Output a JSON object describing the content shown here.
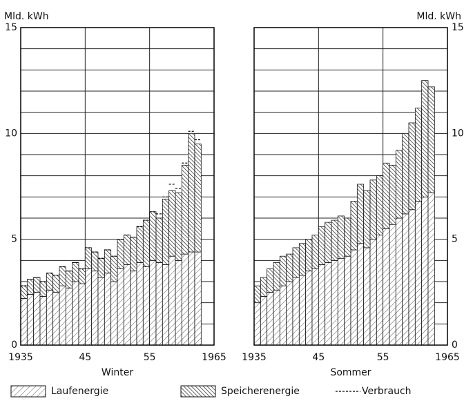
{
  "chart_data": [
    {
      "type": "step-area",
      "xlabel": "Winter",
      "ylabel": "Mld. kWh",
      "yaxis_side": "left",
      "xlim": [
        1935,
        1965
      ],
      "xticks": [
        1935,
        {
          "value": 1945,
          "label": "45"
        },
        {
          "value": 1955,
          "label": "55"
        },
        1965
      ],
      "ylim": [
        0,
        15
      ],
      "yticks": [
        0,
        5,
        10,
        15
      ],
      "minor_yticks": [
        1,
        2,
        3,
        4,
        6,
        7,
        8,
        9,
        11,
        12,
        13,
        14
      ],
      "grid": true,
      "x": [
        1935,
        1936,
        1937,
        1938,
        1939,
        1940,
        1941,
        1942,
        1943,
        1944,
        1945,
        1946,
        1947,
        1948,
        1949,
        1950,
        1951,
        1952,
        1953,
        1954,
        1955,
        1956,
        1957,
        1958,
        1959,
        1960,
        1961,
        1962
      ],
      "series": [
        {
          "name": "Laufenergie",
          "pattern": "single-hatch",
          "values": [
            2.2,
            2.4,
            2.5,
            2.3,
            2.6,
            2.5,
            2.8,
            2.7,
            3.0,
            2.9,
            3.6,
            3.5,
            3.2,
            3.4,
            3.0,
            3.6,
            3.8,
            3.5,
            3.9,
            3.7,
            4.0,
            3.9,
            3.8,
            4.2,
            4.0,
            4.3,
            4.4,
            4.4
          ]
        },
        {
          "name": "Speicherenergie",
          "pattern": "cross-hatch",
          "values": [
            0.6,
            0.7,
            0.7,
            0.7,
            0.8,
            0.8,
            0.9,
            0.8,
            0.9,
            0.7,
            1.0,
            0.9,
            0.9,
            1.1,
            1.2,
            1.4,
            1.4,
            1.6,
            1.7,
            2.2,
            2.3,
            2.1,
            3.1,
            3.1,
            3.2,
            4.2,
            5.6,
            5.1
          ]
        },
        {
          "name": "Verbrauch",
          "pattern": "dashed-line",
          "values": [
            2.8,
            3.1,
            3.2,
            3.0,
            3.4,
            3.3,
            3.7,
            3.5,
            3.9,
            3.6,
            4.6,
            4.4,
            4.1,
            4.5,
            4.2,
            5.0,
            5.2,
            5.1,
            5.6,
            5.9,
            6.3,
            6.2,
            7.0,
            7.6,
            7.4,
            8.6,
            10.1,
            9.7
          ]
        }
      ]
    },
    {
      "type": "step-area",
      "xlabel": "Sommer",
      "ylabel": "Mld. kWh",
      "yaxis_side": "right",
      "xlim": [
        1935,
        1965
      ],
      "xticks": [
        1935,
        {
          "value": 1945,
          "label": "45"
        },
        {
          "value": 1955,
          "label": "55"
        },
        1965
      ],
      "ylim": [
        0,
        15
      ],
      "yticks": [
        0,
        5,
        10,
        15
      ],
      "minor_yticks": [
        1,
        2,
        3,
        4,
        6,
        7,
        8,
        9,
        11,
        12,
        13,
        14
      ],
      "grid": true,
      "x": [
        1935,
        1936,
        1937,
        1938,
        1939,
        1940,
        1941,
        1942,
        1943,
        1944,
        1945,
        1946,
        1947,
        1948,
        1949,
        1950,
        1951,
        1952,
        1953,
        1954,
        1955,
        1956,
        1957,
        1958,
        1959,
        1960,
        1961,
        1962
      ],
      "series": [
        {
          "name": "Laufenergie",
          "pattern": "single-hatch",
          "values": [
            2.0,
            2.3,
            2.5,
            2.6,
            2.8,
            3.0,
            3.2,
            3.3,
            3.5,
            3.6,
            3.8,
            3.9,
            4.0,
            4.1,
            4.2,
            4.5,
            4.8,
            4.6,
            5.0,
            5.2,
            5.5,
            5.7,
            6.0,
            6.2,
            6.4,
            6.8,
            7.0,
            7.2
          ]
        },
        {
          "name": "Speicherenergie",
          "pattern": "cross-hatch",
          "values": [
            0.8,
            0.9,
            1.1,
            1.3,
            1.4,
            1.3,
            1.4,
            1.5,
            1.5,
            1.6,
            1.8,
            1.9,
            1.9,
            2.0,
            1.8,
            2.3,
            2.8,
            2.7,
            2.8,
            2.8,
            3.1,
            2.8,
            3.2,
            3.8,
            4.1,
            4.4,
            5.5,
            5.0
          ]
        }
      ]
    }
  ]
}
